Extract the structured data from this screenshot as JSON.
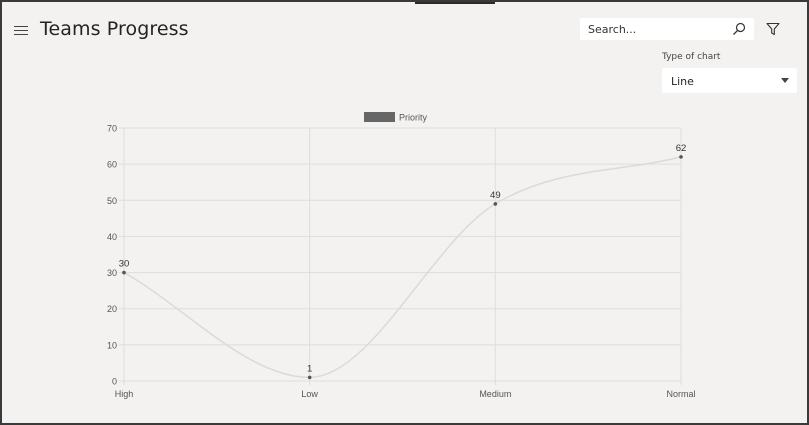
{
  "header": {
    "title": "Teams Progress",
    "search_placeholder": "Search..."
  },
  "chart_type": {
    "label": "Type of chart",
    "selected": "Line"
  },
  "colors": {
    "line": "#dadada",
    "grid": "#dedddc",
    "legend_swatch": "#666666",
    "point": "#555555"
  },
  "chart_data": {
    "type": "line",
    "categories": [
      "High",
      "Low",
      "Medium",
      "Normal"
    ],
    "series": [
      {
        "name": "Priority",
        "values": [
          30,
          1,
          49,
          62
        ]
      }
    ],
    "ylim": [
      0,
      70
    ],
    "yticks": [
      0,
      10,
      20,
      30,
      40,
      50,
      60,
      70
    ],
    "grid": true,
    "legend": "top",
    "data_labels": true
  }
}
